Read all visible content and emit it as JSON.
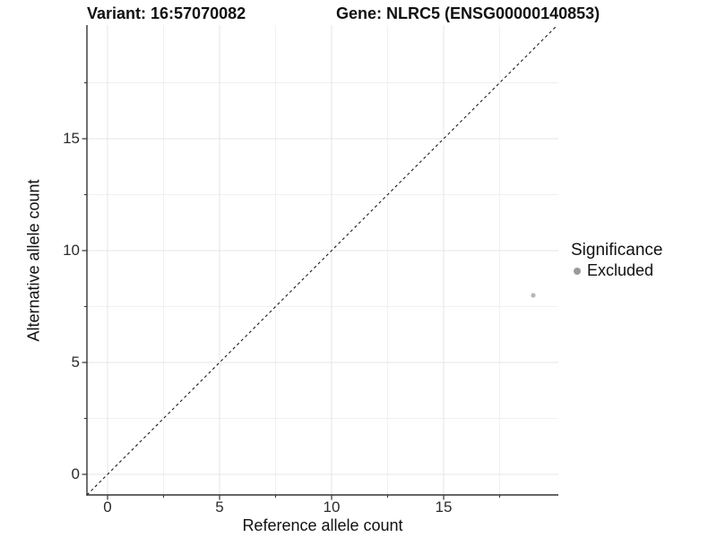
{
  "header": {
    "variant_title": "Variant: 16:57070082",
    "gene_title": "Gene: NLRC5 (ENSG00000140853)"
  },
  "legend": {
    "title": "Significance",
    "items": [
      {
        "label": "Excluded",
        "key_color": "#9a9a9a"
      }
    ]
  },
  "chart_data": {
    "type": "scatter",
    "titles": [
      "Variant: 16:57070082",
      "Gene: NLRC5 (ENSG00000140853)"
    ],
    "xlabel": "Reference allele count",
    "ylabel": "Alternative allele count",
    "xlim": [
      -0.92,
      20.12
    ],
    "ylim": [
      -0.92,
      20.08
    ],
    "x_ticks": [
      0,
      5,
      10,
      15
    ],
    "y_ticks": [
      0,
      5,
      10,
      15
    ],
    "x_minor_ticks": [
      2.5,
      7.5,
      12.5,
      17.5
    ],
    "y_minor_ticks": [
      2.5,
      7.5,
      12.5,
      17.5
    ],
    "grid": true,
    "legend_position": "right",
    "legend_title": "Significance",
    "series": [
      {
        "name": "Excluded",
        "color": "#b7b7b7",
        "points": [
          {
            "x": 19,
            "y": 8
          }
        ]
      }
    ],
    "reference_line": {
      "type": "identity y=x",
      "style": "dashed",
      "color": "#1a1a1a"
    }
  },
  "style": {
    "background": "#ffffff",
    "major_grid_color": "#e4e4e4",
    "minor_grid_color": "#f0f0f0",
    "axis_color": "#333333",
    "point_color": "#b7b7b7",
    "legend_dot_color": "#9a9a9a"
  }
}
